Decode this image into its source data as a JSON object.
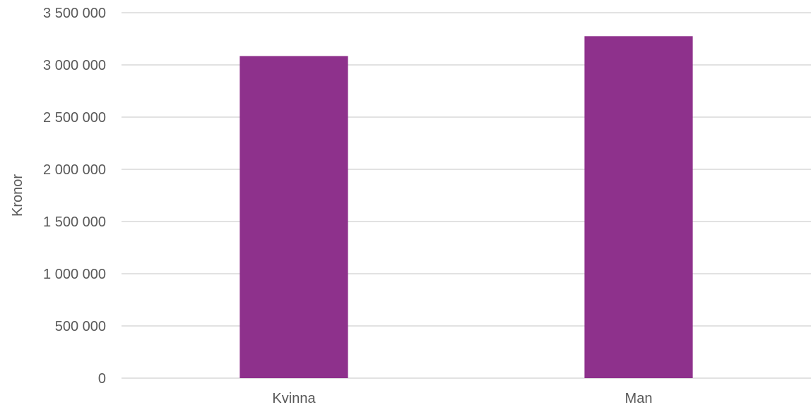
{
  "chart_data": {
    "type": "bar",
    "title": "",
    "xlabel": "",
    "ylabel": "Kronor",
    "categories": [
      "Kvinna",
      "Man"
    ],
    "series": [
      {
        "values": [
          3085000,
          3275000
        ],
        "color": "#8E318C"
      }
    ],
    "ylim": [
      0,
      3500000
    ],
    "yticks": [
      0,
      500000,
      1000000,
      1500000,
      2000000,
      2500000,
      3000000,
      3500000
    ],
    "ytick_labels": [
      "0",
      "500 000",
      "1 000 000",
      "1 500 000",
      "2 000 000",
      "2 500 000",
      "3 000 000",
      "3 500 000"
    ],
    "grid": true,
    "legend": "none",
    "gridline_color": "#D9D9D9",
    "text_color": "#595959"
  }
}
